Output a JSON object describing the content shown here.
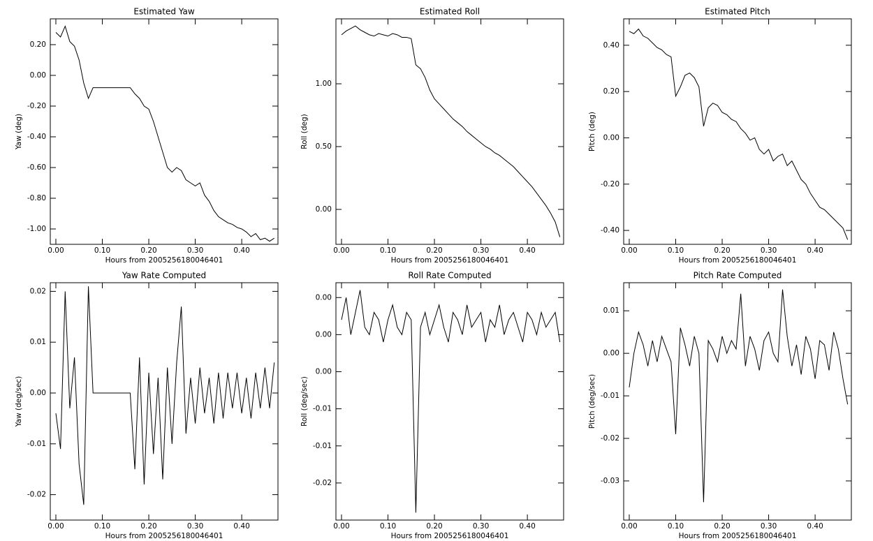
{
  "chart_data": [
    {
      "type": "line",
      "title": "Estimated Yaw",
      "xlabel": "Hours from 2005256180046401",
      "ylabel": "Yaw (deg)",
      "color": "#000000",
      "x": [
        0,
        0.01,
        0.02,
        0.03,
        0.04,
        0.05,
        0.06,
        0.07,
        0.08,
        0.09,
        0.1,
        0.11,
        0.12,
        0.13,
        0.14,
        0.15,
        0.16,
        0.17,
        0.18,
        0.19,
        0.2,
        0.21,
        0.22,
        0.23,
        0.24,
        0.25,
        0.26,
        0.27,
        0.28,
        0.29,
        0.3,
        0.31,
        0.32,
        0.33,
        0.34,
        0.35,
        0.36,
        0.37,
        0.38,
        0.39,
        0.4,
        0.41,
        0.42,
        0.43,
        0.44,
        0.45,
        0.46,
        0.47
      ],
      "values": [
        0.28,
        0.25,
        0.32,
        0.22,
        0.19,
        0.1,
        -0.05,
        -0.15,
        -0.08,
        -0.08,
        -0.08,
        -0.08,
        -0.08,
        -0.08,
        -0.08,
        -0.08,
        -0.08,
        -0.12,
        -0.15,
        -0.2,
        -0.22,
        -0.3,
        -0.4,
        -0.5,
        -0.6,
        -0.63,
        -0.6,
        -0.62,
        -0.68,
        -0.7,
        -0.72,
        -0.7,
        -0.78,
        -0.82,
        -0.88,
        -0.92,
        -0.94,
        -0.96,
        -0.97,
        -0.99,
        -1.0,
        -1.02,
        -1.05,
        -1.03,
        -1.07,
        -1.06,
        -1.08,
        -1.06
      ],
      "xlim": [
        -0.012,
        0.478
      ],
      "ylim": [
        -1.1,
        0.368
      ],
      "xticks": [
        {
          "value": 0,
          "label": "0.00"
        },
        {
          "value": 0.1,
          "label": "0.10"
        },
        {
          "value": 0.2,
          "label": "0.20"
        },
        {
          "value": 0.3,
          "label": "0.30"
        },
        {
          "value": 0.4,
          "label": "0.40"
        }
      ],
      "yticks": [
        {
          "value": -1.0,
          "label": "-1.00"
        },
        {
          "value": -0.8,
          "label": "-0.80"
        },
        {
          "value": -0.6,
          "label": "-0.60"
        },
        {
          "value": -0.4,
          "label": "-0.40"
        },
        {
          "value": -0.2,
          "label": "-0.20"
        },
        {
          "value": 0,
          "label": "0.00"
        },
        {
          "value": 0.2,
          "label": "0.20"
        }
      ]
    },
    {
      "type": "line",
      "title": "Estimated Roll",
      "xlabel": "Hours from 2005256180046401",
      "ylabel": "Roll (deg)",
      "color": "#000000",
      "x": [
        0,
        0.01,
        0.02,
        0.03,
        0.04,
        0.05,
        0.06,
        0.07,
        0.08,
        0.09,
        0.1,
        0.11,
        0.12,
        0.13,
        0.14,
        0.15,
        0.16,
        0.17,
        0.18,
        0.19,
        0.2,
        0.21,
        0.22,
        0.23,
        0.24,
        0.25,
        0.26,
        0.27,
        0.28,
        0.29,
        0.3,
        0.31,
        0.32,
        0.33,
        0.34,
        0.35,
        0.36,
        0.37,
        0.38,
        0.39,
        0.4,
        0.41,
        0.42,
        0.43,
        0.44,
        0.45,
        0.46,
        0.47
      ],
      "values": [
        1.39,
        1.42,
        1.44,
        1.46,
        1.43,
        1.41,
        1.39,
        1.38,
        1.4,
        1.39,
        1.38,
        1.4,
        1.39,
        1.37,
        1.37,
        1.36,
        1.15,
        1.12,
        1.05,
        0.95,
        0.88,
        0.84,
        0.8,
        0.76,
        0.72,
        0.69,
        0.66,
        0.62,
        0.59,
        0.56,
        0.53,
        0.5,
        0.48,
        0.45,
        0.43,
        0.4,
        0.37,
        0.34,
        0.3,
        0.26,
        0.22,
        0.18,
        0.13,
        0.08,
        0.03,
        -0.03,
        -0.1,
        -0.22
      ],
      "xlim": [
        -0.012,
        0.478
      ],
      "ylim": [
        -0.278,
        1.517
      ],
      "xticks": [
        {
          "value": 0,
          "label": "0.00"
        },
        {
          "value": 0.1,
          "label": "0.10"
        },
        {
          "value": 0.2,
          "label": "0.20"
        },
        {
          "value": 0.3,
          "label": "0.30"
        },
        {
          "value": 0.4,
          "label": "0.40"
        }
      ],
      "yticks": [
        {
          "value": 0,
          "label": "0.00"
        },
        {
          "value": 0.5,
          "label": "0.50"
        },
        {
          "value": 1.0,
          "label": "1.00"
        }
      ]
    },
    {
      "type": "line",
      "title": "Estimated Pitch",
      "xlabel": "Hours from 2005256180046401",
      "ylabel": "Pitch (deg)",
      "color": "#000000",
      "x": [
        0,
        0.01,
        0.02,
        0.03,
        0.04,
        0.05,
        0.06,
        0.07,
        0.08,
        0.09,
        0.1,
        0.11,
        0.12,
        0.13,
        0.14,
        0.15,
        0.16,
        0.17,
        0.18,
        0.19,
        0.2,
        0.21,
        0.22,
        0.23,
        0.24,
        0.25,
        0.26,
        0.27,
        0.28,
        0.29,
        0.3,
        0.31,
        0.32,
        0.33,
        0.34,
        0.35,
        0.36,
        0.37,
        0.38,
        0.39,
        0.4,
        0.41,
        0.42,
        0.43,
        0.44,
        0.45,
        0.46,
        0.47
      ],
      "values": [
        0.46,
        0.45,
        0.47,
        0.44,
        0.43,
        0.41,
        0.39,
        0.38,
        0.36,
        0.35,
        0.18,
        0.22,
        0.27,
        0.28,
        0.26,
        0.22,
        0.05,
        0.13,
        0.15,
        0.14,
        0.11,
        0.1,
        0.08,
        0.07,
        0.04,
        0.02,
        -0.01,
        0,
        -0.05,
        -0.07,
        -0.05,
        -0.1,
        -0.08,
        -0.07,
        -0.12,
        -0.1,
        -0.14,
        -0.18,
        -0.2,
        -0.24,
        -0.27,
        -0.3,
        -0.31,
        -0.33,
        -0.35,
        -0.37,
        -0.39,
        -0.44
      ],
      "xlim": [
        -0.012,
        0.478
      ],
      "ylim": [
        -0.46,
        0.514
      ],
      "xticks": [
        {
          "value": 0,
          "label": "0.00"
        },
        {
          "value": 0.1,
          "label": "0.10"
        },
        {
          "value": 0.2,
          "label": "0.20"
        },
        {
          "value": 0.3,
          "label": "0.30"
        },
        {
          "value": 0.4,
          "label": "0.40"
        }
      ],
      "yticks": [
        {
          "value": -0.4,
          "label": "-0.40"
        },
        {
          "value": -0.2,
          "label": "-0.20"
        },
        {
          "value": 0,
          "label": "0.00"
        },
        {
          "value": 0.2,
          "label": "0.20"
        },
        {
          "value": 0.4,
          "label": "0.40"
        }
      ]
    },
    {
      "type": "line",
      "title": "Yaw Rate Computed",
      "xlabel": "Hours from 2005256180046401",
      "ylabel": "Yaw (deg/sec)",
      "color": "#000000",
      "x": [
        0,
        0.01,
        0.02,
        0.03,
        0.04,
        0.05,
        0.06,
        0.07,
        0.08,
        0.09,
        0.1,
        0.11,
        0.12,
        0.13,
        0.14,
        0.15,
        0.16,
        0.17,
        0.18,
        0.19,
        0.2,
        0.21,
        0.22,
        0.23,
        0.24,
        0.25,
        0.26,
        0.27,
        0.28,
        0.29,
        0.3,
        0.31,
        0.32,
        0.33,
        0.34,
        0.35,
        0.36,
        0.37,
        0.38,
        0.39,
        0.4,
        0.41,
        0.42,
        0.43,
        0.44,
        0.45,
        0.46,
        0.47
      ],
      "values": [
        -0.004,
        -0.011,
        0.02,
        -0.003,
        0.007,
        -0.014,
        -0.022,
        0.021,
        0,
        0,
        0,
        0,
        0,
        0,
        0,
        0,
        0,
        -0.015,
        0.007,
        -0.018,
        0.004,
        -0.012,
        0.003,
        -0.017,
        0.005,
        -0.01,
        0.006,
        0.017,
        -0.008,
        0.003,
        -0.006,
        0.005,
        -0.004,
        0.003,
        -0.006,
        0.004,
        -0.005,
        0.004,
        -0.003,
        0.004,
        -0.004,
        0.003,
        -0.005,
        0.004,
        -0.003,
        0.005,
        -0.003,
        0.006
      ],
      "xlim": [
        -0.012,
        0.478
      ],
      "ylim": [
        -0.025,
        0.0217
      ],
      "xticks": [
        {
          "value": 0,
          "label": "0.00"
        },
        {
          "value": 0.1,
          "label": "0.10"
        },
        {
          "value": 0.2,
          "label": "0.20"
        },
        {
          "value": 0.3,
          "label": "0.30"
        },
        {
          "value": 0.4,
          "label": "0.40"
        }
      ],
      "yticks": [
        {
          "value": -0.02,
          "label": "-0.02"
        },
        {
          "value": -0.01,
          "label": "-0.01"
        },
        {
          "value": 0,
          "label": "0.00"
        },
        {
          "value": 0.01,
          "label": "0.01"
        },
        {
          "value": 0.02,
          "label": "0.02"
        }
      ]
    },
    {
      "type": "line",
      "title": "Roll Rate Computed",
      "xlabel": "Hours from 2005256180046401",
      "ylabel": "Roll (deg/sec)",
      "color": "#000000",
      "x": [
        0,
        0.01,
        0.02,
        0.03,
        0.04,
        0.05,
        0.06,
        0.07,
        0.08,
        0.09,
        0.1,
        0.11,
        0.12,
        0.13,
        0.14,
        0.15,
        0.16,
        0.17,
        0.18,
        0.19,
        0.2,
        0.21,
        0.22,
        0.23,
        0.24,
        0.25,
        0.26,
        0.27,
        0.28,
        0.29,
        0.3,
        0.31,
        0.32,
        0.33,
        0.34,
        0.35,
        0.36,
        0.37,
        0.38,
        0.39,
        0.4,
        0.41,
        0.42,
        0.43,
        0.44,
        0.45,
        0.46,
        0.47
      ],
      "values": [
        0.002,
        0.005,
        0,
        0.003,
        0.006,
        0.001,
        0,
        0.003,
        0.002,
        -0.001,
        0.002,
        0.004,
        0.001,
        0,
        0.003,
        0.002,
        -0.024,
        0.001,
        0.003,
        0,
        0.002,
        0.004,
        0.001,
        -0.001,
        0.003,
        0.002,
        0,
        0.004,
        0.001,
        0.002,
        0.003,
        -0.001,
        0.002,
        0.001,
        0.004,
        0,
        0.002,
        0.003,
        0.001,
        -0.001,
        0.003,
        0.002,
        0,
        0.003,
        0.001,
        0.002,
        0.003,
        -0.001
      ],
      "xlim": [
        -0.012,
        0.478
      ],
      "ylim": [
        -0.025,
        0.007
      ],
      "xticks": [
        {
          "value": 0,
          "label": "0.00"
        },
        {
          "value": 0.1,
          "label": "0.10"
        },
        {
          "value": 0.2,
          "label": "0.20"
        },
        {
          "value": 0.3,
          "label": "0.30"
        },
        {
          "value": 0.4,
          "label": "0.40"
        }
      ],
      "yticks": [
        {
          "value": -0.02,
          "label": "-0.02"
        },
        {
          "value": -0.015,
          "label": "-0.01"
        },
        {
          "value": -0.01,
          "label": "-0.01"
        },
        {
          "value": -0.005,
          "label": "0.00"
        },
        {
          "value": 0,
          "label": "0.00"
        },
        {
          "value": 0.005,
          "label": "0.00"
        }
      ]
    },
    {
      "type": "line",
      "title": "Pitch Rate Computed",
      "xlabel": "Hours from 2005256180046401",
      "ylabel": "Pitch (deg/sec)",
      "color": "#000000",
      "x": [
        0,
        0.01,
        0.02,
        0.03,
        0.04,
        0.05,
        0.06,
        0.07,
        0.08,
        0.09,
        0.1,
        0.11,
        0.12,
        0.13,
        0.14,
        0.15,
        0.16,
        0.17,
        0.18,
        0.19,
        0.2,
        0.21,
        0.22,
        0.23,
        0.24,
        0.25,
        0.26,
        0.27,
        0.28,
        0.29,
        0.3,
        0.31,
        0.32,
        0.33,
        0.34,
        0.35,
        0.36,
        0.37,
        0.38,
        0.39,
        0.4,
        0.41,
        0.42,
        0.43,
        0.44,
        0.45,
        0.46,
        0.47
      ],
      "values": [
        -0.008,
        0,
        0.005,
        0.002,
        -0.003,
        0.003,
        -0.002,
        0.004,
        0.001,
        -0.002,
        -0.019,
        0.006,
        0.002,
        -0.003,
        0.004,
        0,
        -0.035,
        0.003,
        0.001,
        -0.002,
        0.004,
        0,
        0.003,
        0.001,
        0.014,
        -0.003,
        0.004,
        0.001,
        -0.004,
        0.003,
        0.005,
        0,
        -0.002,
        0.015,
        0.004,
        -0.003,
        0.002,
        -0.005,
        0.004,
        0.001,
        -0.006,
        0.003,
        0.002,
        -0.004,
        0.005,
        0.001,
        -0.006,
        -0.012
      ],
      "xlim": [
        -0.012,
        0.478
      ],
      "ylim": [
        -0.0392,
        0.0166
      ],
      "xticks": [
        {
          "value": 0,
          "label": "0.00"
        },
        {
          "value": 0.1,
          "label": "0.10"
        },
        {
          "value": 0.2,
          "label": "0.20"
        },
        {
          "value": 0.3,
          "label": "0.30"
        },
        {
          "value": 0.4,
          "label": "0.40"
        }
      ],
      "yticks": [
        {
          "value": -0.03,
          "label": "-0.03"
        },
        {
          "value": -0.02,
          "label": "-0.02"
        },
        {
          "value": -0.01,
          "label": "-0.01"
        },
        {
          "value": 0,
          "label": "0.00"
        },
        {
          "value": 0.01,
          "label": "0.01"
        }
      ]
    }
  ]
}
